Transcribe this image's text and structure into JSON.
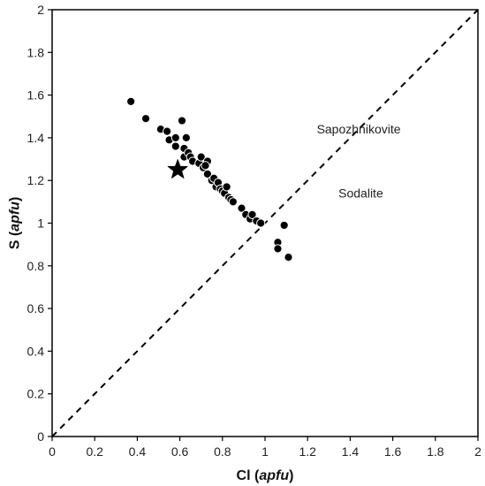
{
  "chart_data": {
    "type": "scatter",
    "title": "",
    "xlabel": {
      "main": "Cl (",
      "italic": "apfu",
      "close": ")"
    },
    "ylabel": {
      "main": "S (",
      "italic": "apfu",
      "close": ")"
    },
    "xlim": [
      0,
      2
    ],
    "ylim": [
      0,
      2
    ],
    "x_ticks": [
      "0",
      "0.2",
      "0.4",
      "0.6",
      "0.8",
      "1",
      "1.2",
      "1.4",
      "1.6",
      "1.8",
      "2"
    ],
    "y_ticks": [
      "0",
      "0.2",
      "0.4",
      "0.6",
      "0.8",
      "1",
      "1.2",
      "1.4",
      "1.6",
      "1.8",
      "2"
    ],
    "grid": false,
    "reference_line": {
      "style": "dashed",
      "x": [
        0,
        2
      ],
      "y": [
        0,
        2
      ]
    },
    "annotations": [
      {
        "text": "Sapozhnikovite",
        "x": 1.44,
        "y": 1.44
      },
      {
        "text": "Sodalite",
        "x": 1.45,
        "y": 1.14
      }
    ],
    "points": [
      {
        "x": 0.37,
        "y": 1.57
      },
      {
        "x": 0.44,
        "y": 1.49
      },
      {
        "x": 0.51,
        "y": 1.44
      },
      {
        "x": 0.54,
        "y": 1.43
      },
      {
        "x": 0.55,
        "y": 1.39
      },
      {
        "x": 0.58,
        "y": 1.4
      },
      {
        "x": 0.58,
        "y": 1.36
      },
      {
        "x": 0.61,
        "y": 1.48
      },
      {
        "x": 0.62,
        "y": 1.35
      },
      {
        "x": 0.63,
        "y": 1.4
      },
      {
        "x": 0.62,
        "y": 1.31
      },
      {
        "x": 0.64,
        "y": 1.33
      },
      {
        "x": 0.65,
        "y": 1.31
      },
      {
        "x": 0.66,
        "y": 1.29
      },
      {
        "x": 0.69,
        "y": 1.28
      },
      {
        "x": 0.7,
        "y": 1.31
      },
      {
        "x": 0.71,
        "y": 1.26
      },
      {
        "x": 0.73,
        "y": 1.29
      },
      {
        "x": 0.72,
        "y": 1.27
      },
      {
        "x": 0.73,
        "y": 1.23
      },
      {
        "x": 0.75,
        "y": 1.2
      },
      {
        "x": 0.76,
        "y": 1.21
      },
      {
        "x": 0.77,
        "y": 1.17
      },
      {
        "x": 0.78,
        "y": 1.19
      },
      {
        "x": 0.79,
        "y": 1.16
      },
      {
        "x": 0.8,
        "y": 1.15
      },
      {
        "x": 0.81,
        "y": 1.14
      },
      {
        "x": 0.82,
        "y": 1.17
      },
      {
        "x": 0.83,
        "y": 1.12
      },
      {
        "x": 0.84,
        "y": 1.11
      },
      {
        "x": 0.85,
        "y": 1.1
      },
      {
        "x": 0.89,
        "y": 1.07
      },
      {
        "x": 0.91,
        "y": 1.04
      },
      {
        "x": 0.93,
        "y": 1.02
      },
      {
        "x": 0.94,
        "y": 1.04
      },
      {
        "x": 0.96,
        "y": 1.01
      },
      {
        "x": 0.98,
        "y": 1.0
      },
      {
        "x": 1.06,
        "y": 0.91
      },
      {
        "x": 1.06,
        "y": 0.88
      },
      {
        "x": 1.09,
        "y": 0.99
      },
      {
        "x": 1.11,
        "y": 0.84
      }
    ],
    "highlight_point": {
      "x": 0.59,
      "y": 1.25,
      "marker": "star"
    },
    "marker_color": "#000000",
    "marker_edge_color": "#ffffff"
  }
}
